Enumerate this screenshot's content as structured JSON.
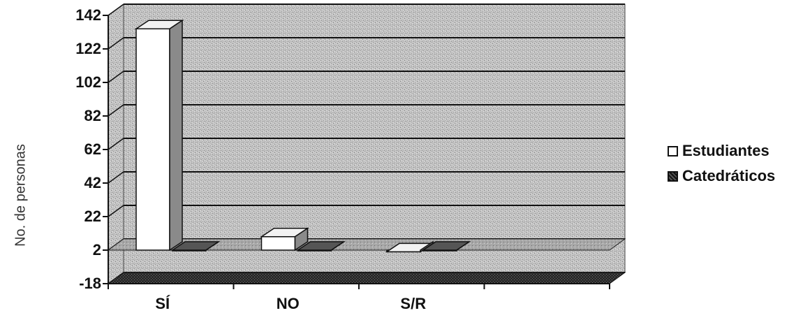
{
  "chart_data": {
    "type": "bar",
    "categories": [
      "SÍ",
      "NO",
      "S/R"
    ],
    "series": [
      {
        "name": "Estudiantes",
        "values": [
          134,
          10,
          1
        ]
      },
      {
        "name": "Catedráticos",
        "values": [
          2,
          2,
          2
        ]
      }
    ],
    "ylabel": "No. de personas",
    "ylim": [
      -18,
      142
    ],
    "yticks": [
      "142",
      "122",
      "102",
      "82",
      "62",
      "42",
      "22",
      "2",
      "-18"
    ],
    "grid": true,
    "legend_position": "right",
    "colors": {
      "estudiantes": "#ffffff",
      "catedraticos": "#222222",
      "wall": "#bdbdbd",
      "floor": "#9a9a9a"
    }
  }
}
